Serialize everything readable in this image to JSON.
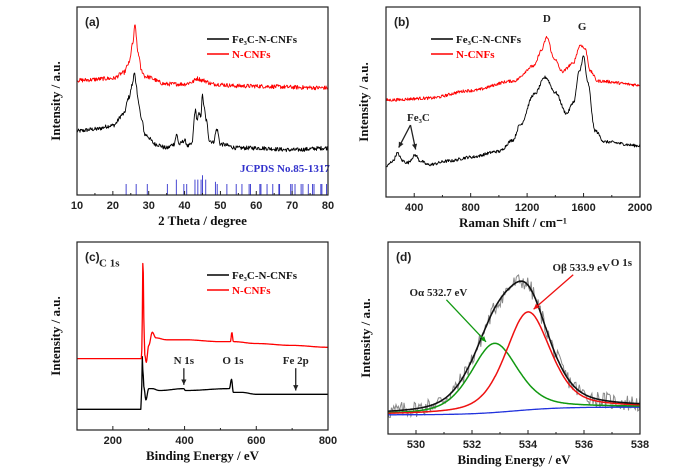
{
  "chart_data": [
    {
      "panel": "(a)",
      "type": "line",
      "xlabel": "2 Theta / degree",
      "ylabel": "Intensity / a.u.",
      "xlim": [
        10,
        80
      ],
      "xticks": [
        10,
        20,
        30,
        40,
        50,
        60,
        70,
        80
      ],
      "ylim": [
        0,
        100
      ],
      "grid": false,
      "legend_position": "top-right",
      "series": [
        {
          "name": "Fe₃C-N-CNFs",
          "color": "#000000",
          "noisy": true,
          "points": [
            [
              10,
              34
            ],
            [
              15,
              35
            ],
            [
              20,
              37
            ],
            [
              23,
              43
            ],
            [
              24.5,
              52
            ],
            [
              25.5,
              59
            ],
            [
              26,
              66
            ],
            [
              26.5,
              58
            ],
            [
              27,
              51
            ],
            [
              28,
              40
            ],
            [
              29,
              32
            ],
            [
              32,
              27
            ],
            [
              35,
              25
            ],
            [
              37,
              27
            ],
            [
              37.8,
              32
            ],
            [
              38.5,
              27
            ],
            [
              40,
              29
            ],
            [
              41,
              26
            ],
            [
              42,
              27
            ],
            [
              43,
              45
            ],
            [
              43.5,
              40
            ],
            [
              44,
              43
            ],
            [
              44.5,
              42
            ],
            [
              45,
              53
            ],
            [
              45.5,
              46
            ],
            [
              46,
              40
            ],
            [
              47,
              29
            ],
            [
              48,
              28
            ],
            [
              49,
              35
            ],
            [
              50,
              27
            ],
            [
              55,
              25
            ],
            [
              60,
              25
            ],
            [
              70,
              24
            ],
            [
              80,
              25
            ]
          ]
        },
        {
          "name": "N-CNFs",
          "color": "#ff0000",
          "noisy": true,
          "points": [
            [
              10,
              61
            ],
            [
              20,
              62
            ],
            [
              23,
              65
            ],
            [
              24.5,
              70
            ],
            [
              25.5,
              80
            ],
            [
              26.2,
              90
            ],
            [
              27,
              76
            ],
            [
              28,
              66
            ],
            [
              29,
              63
            ],
            [
              35,
              59
            ],
            [
              40,
              59
            ],
            [
              42,
              60
            ],
            [
              43.5,
              62
            ],
            [
              45,
              61
            ],
            [
              48,
              59
            ],
            [
              55,
              58
            ],
            [
              80,
              57
            ]
          ]
        }
      ],
      "reference": {
        "label": "JCPDS No.85-1317",
        "color": "#3333cc",
        "positions": [
          23.7,
          26.5,
          29.6,
          35.2,
          37.7,
          39.8,
          40.6,
          42.9,
          43.7,
          44.6,
          45.0,
          45.9,
          48.6,
          49.1,
          51.8,
          54.4,
          56.0,
          58.0,
          58.4,
          61.0,
          61.3,
          63.0,
          64.6,
          66.3,
          66.5,
          69.6,
          70.0,
          70.8,
          72.5,
          73.0,
          74.5,
          75.7,
          76.1,
          78.0,
          78.3,
          79.6
        ],
        "heights": [
          5,
          5,
          5,
          5,
          7,
          5,
          5,
          7,
          7,
          7,
          9,
          7,
          6,
          5,
          5,
          5,
          5,
          5,
          5,
          5,
          5,
          5,
          5,
          5,
          5,
          5,
          5,
          5,
          5,
          5,
          5,
          5,
          5,
          5,
          5,
          5
        ]
      },
      "annotations": []
    },
    {
      "panel": "(b)",
      "type": "line",
      "xlabel": "Raman Shift / cm⁻¹",
      "ylabel": "Intensity / a.u.",
      "xlim": [
        200,
        2000
      ],
      "xticks": [
        400,
        800,
        1200,
        1600,
        2000
      ],
      "ylim": [
        0,
        100
      ],
      "grid": false,
      "legend_position": "top-left",
      "series": [
        {
          "name": "Fe₃C-N-CNFs",
          "color": "#000000",
          "noisy": true,
          "points": [
            [
              200,
              16
            ],
            [
              250,
              19
            ],
            [
              280,
              23
            ],
            [
              320,
              19
            ],
            [
              350,
              18
            ],
            [
              410,
              22
            ],
            [
              440,
              19
            ],
            [
              500,
              17
            ],
            [
              650,
              19
            ],
            [
              800,
              21
            ],
            [
              1000,
              24
            ],
            [
              1100,
              30
            ],
            [
              1150,
              38
            ],
            [
              1250,
              54
            ],
            [
              1330,
              63
            ],
            [
              1400,
              55
            ],
            [
              1480,
              44
            ],
            [
              1530,
              50
            ],
            [
              1570,
              66
            ],
            [
              1600,
              74
            ],
            [
              1630,
              60
            ],
            [
              1680,
              35
            ],
            [
              1750,
              29
            ],
            [
              2000,
              27
            ]
          ]
        },
        {
          "name": "N-CNFs",
          "color": "#ff0000",
          "noisy": true,
          "points": [
            [
              200,
              51
            ],
            [
              500,
              52
            ],
            [
              800,
              56
            ],
            [
              1100,
              61
            ],
            [
              1250,
              69
            ],
            [
              1300,
              77
            ],
            [
              1340,
              84
            ],
            [
              1390,
              73
            ],
            [
              1450,
              66
            ],
            [
              1520,
              70
            ],
            [
              1580,
              80
            ],
            [
              1610,
              78
            ],
            [
              1650,
              66
            ],
            [
              1700,
              61
            ],
            [
              2000,
              59
            ]
          ]
        }
      ],
      "annotations": [
        {
          "text": "D",
          "x": 1340,
          "y": 92
        },
        {
          "text": "G",
          "x": 1590,
          "y": 88
        },
        {
          "text": "Fe₃C",
          "x": 430,
          "y": 40,
          "arrows": [
            [
              290,
              26
            ],
            [
              410,
              25
            ]
          ]
        }
      ]
    },
    {
      "panel": "(c)",
      "type": "line",
      "xlabel": "Binding Energy / eV",
      "ylabel": "Intensity / a.u.",
      "xlim": [
        100,
        800
      ],
      "xticks": [
        200,
        400,
        600,
        800
      ],
      "ylim": [
        0,
        100
      ],
      "grid": false,
      "legend_position": "top-right",
      "series": [
        {
          "name": "Fe₃C-N-CNFs",
          "color": "#000000",
          "noisy": false,
          "points": [
            [
              100,
              11
            ],
            [
              278,
              11
            ],
            [
              280,
              20
            ],
            [
              282,
              39
            ],
            [
              284,
              30
            ],
            [
              287,
              22
            ],
            [
              292,
              16
            ],
            [
              300,
              22
            ],
            [
              310,
              22
            ],
            [
              330,
              21
            ],
            [
              398,
              22
            ],
            [
              402,
              21
            ],
            [
              525,
              22
            ],
            [
              531,
              27
            ],
            [
              536,
              20
            ],
            [
              560,
              20
            ],
            [
              600,
              19
            ],
            [
              710,
              19
            ],
            [
              800,
              19
            ]
          ]
        },
        {
          "name": "N-CNFs",
          "color": "#ff0000",
          "noisy": false,
          "points": [
            [
              100,
              38
            ],
            [
              280,
              38
            ],
            [
              282,
              60
            ],
            [
              284,
              96
            ],
            [
              286,
              60
            ],
            [
              289,
              40
            ],
            [
              293,
              36
            ],
            [
              300,
              45
            ],
            [
              310,
              52
            ],
            [
              320,
              49
            ],
            [
              350,
              48
            ],
            [
              400,
              48
            ],
            [
              500,
              47
            ],
            [
              528,
              47
            ],
            [
              532,
              52
            ],
            [
              536,
              47
            ],
            [
              600,
              46
            ],
            [
              700,
              45
            ],
            [
              800,
              44
            ]
          ]
        }
      ],
      "annotations": [
        {
          "text": "C 1s",
          "x": 190,
          "y": 87
        },
        {
          "text": "N 1s",
          "x": 398,
          "y": 35,
          "arrows": [
            [
              398,
              24
            ]
          ]
        },
        {
          "text": "O 1s",
          "x": 535,
          "y": 35
        },
        {
          "text": "Fe 2p",
          "x": 710,
          "y": 35,
          "arrows": [
            [
              710,
              21
            ]
          ]
        }
      ]
    },
    {
      "panel": "(d)",
      "type": "line",
      "title": "O 1s",
      "xlabel": "Binding Energy / eV",
      "ylabel": "Intensity / a.u.",
      "xlim": [
        529,
        538
      ],
      "xticks": [
        530,
        532,
        534,
        536,
        538
      ],
      "ylim": [
        0,
        100
      ],
      "grid": false,
      "baseline": {
        "color": "#2233dd",
        "start": [
          529,
          10
        ],
        "end": [
          538,
          14
        ]
      },
      "components": [
        {
          "label": "Oα 532.7 eV",
          "center": 532.8,
          "height": 36,
          "fwhm": 2.0,
          "color": "#119911"
        },
        {
          "label": "Oβ 533.9 eV",
          "center": 534.0,
          "height": 51,
          "fwhm": 1.9,
          "color": "#ee1111"
        }
      ],
      "envelope_color": "#111111",
      "raw_color": "#888888",
      "annotations": [
        {
          "text": "Oα  532.7 eV",
          "x": 530.8,
          "y": 72,
          "color": "#119911",
          "arrows": [
            [
              532.5,
              48
            ]
          ]
        },
        {
          "text": "Oβ  533.9 eV",
          "x": 535.9,
          "y": 85,
          "color": "#ee1111",
          "arrows": [
            [
              534.2,
              65
            ]
          ]
        }
      ]
    }
  ]
}
